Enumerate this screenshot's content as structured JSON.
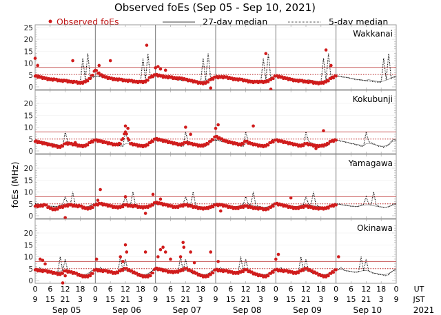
{
  "chart_data": {
    "type": "scatter",
    "title": "Observed foEs (Sep 05 - Sep 10, 2021)",
    "legend": {
      "observed": "Observed foEs",
      "median27": "27-day median",
      "median5": "5-day median",
      "placement": "top"
    },
    "ylabel": "foEs (MHz)",
    "colors": {
      "observed": "#d01c1c",
      "threshold": "#c85a5a",
      "median": "#000000",
      "grid": "#808080"
    },
    "x_axis": {
      "unit_hours": 144,
      "ut_label": "UT",
      "jst_label": "JST",
      "ut_ticks": [
        "0",
        "6",
        "12",
        "18",
        "0",
        "6",
        "12",
        "18",
        "0",
        "6",
        "12",
        "18",
        "0",
        "6",
        "12",
        "18",
        "0",
        "6",
        "12",
        "18",
        "0",
        "6",
        "12",
        "18",
        "0"
      ],
      "jst_ticks": [
        "9",
        "15",
        "21",
        "3",
        "9",
        "15",
        "21",
        "3",
        "9",
        "15",
        "21",
        "3",
        "9",
        "15",
        "21",
        "3",
        "9",
        "15",
        "21",
        "3",
        "9",
        "15",
        "21",
        "3",
        "9"
      ],
      "days": [
        "Sep 05",
        "Sep 06",
        "Sep 07",
        "Sep 08",
        "Sep 09",
        "Sep 10"
      ],
      "year": "2021"
    },
    "y_ticks_top": [
      "0",
      "5",
      "10",
      "15",
      "20",
      "25"
    ],
    "y_ticks": [
      "0",
      "5",
      "10",
      "15",
      "20"
    ],
    "ylim": [
      -1,
      26
    ],
    "observed_interval_hours": 2,
    "stations": [
      {
        "name": "Wakkanai",
        "threshold_solid": 8.2,
        "threshold_dotted": 5.2,
        "observed": [
          4.5,
          4,
          3.5,
          3,
          3,
          2.5,
          2.5,
          2,
          2,
          1.5,
          2,
          3.5,
          7,
          5,
          4,
          3.5,
          3,
          3,
          2.5,
          2.5,
          2,
          2,
          2,
          4,
          5,
          4.5,
          4,
          4,
          3.5,
          3.5,
          3,
          2.5,
          2,
          1.5,
          1.5,
          3,
          4,
          4,
          4,
          3.5,
          3,
          3,
          2.5,
          2,
          2,
          2,
          2,
          3,
          4.5,
          4,
          3.5,
          3,
          2.5,
          2.5,
          2,
          2,
          1.5,
          1.5,
          2,
          3.5,
          4.5
        ],
        "outliers": [
          [
            0,
            12
          ],
          [
            1,
            9
          ],
          [
            15,
            11
          ],
          [
            25.5,
            9
          ],
          [
            30,
            11
          ],
          [
            44.5,
            17.5
          ],
          [
            48,
            8
          ],
          [
            49,
            8.5
          ],
          [
            50,
            7.5
          ],
          [
            52,
            7
          ],
          [
            70,
            -0.5
          ],
          [
            92,
            14
          ],
          [
            94,
            -1
          ],
          [
            116,
            15.5
          ],
          [
            118,
            9
          ]
        ],
        "median5": [
          4.5,
          4.5,
          4.3,
          4,
          4,
          3.8,
          3.5,
          3.3,
          3,
          3,
          2.8,
          2.7,
          2.5,
          2.5,
          2.3,
          2.2,
          2,
          2,
          2,
          12,
          3,
          14,
          3.5,
          4
        ],
        "median27": [
          4.5,
          4.6,
          4.4,
          4.2,
          4,
          3.8,
          3.6,
          3.4,
          3.2,
          3,
          3,
          2.8,
          2.8,
          3,
          2.8,
          2.6,
          2.4,
          2.2,
          2.2,
          2.5,
          2.8,
          3.2,
          3.8,
          4.2
        ]
      },
      {
        "name": "Kokubunji",
        "threshold_solid": 8,
        "threshold_dotted": 5,
        "observed": [
          4,
          3.5,
          3,
          2.5,
          2,
          1.5,
          3,
          3,
          2.5,
          2,
          2,
          3.5,
          4.5,
          4,
          3.5,
          3,
          2.5,
          3,
          8,
          3,
          2.5,
          2,
          2,
          3.5,
          5,
          4.5,
          4,
          3.5,
          3,
          2.5,
          3.5,
          3,
          2.5,
          2,
          2.5,
          4,
          6,
          5,
          4,
          3.5,
          3,
          2.5,
          4,
          3,
          2.5,
          2,
          2,
          3.5,
          4.5,
          4,
          3.5,
          3,
          2.5,
          2,
          3,
          2.5,
          2,
          2,
          2.5,
          4,
          4.5
        ],
        "outliers": [
          [
            16,
            3.5
          ],
          [
            36,
            10.5
          ],
          [
            37,
            9.5
          ],
          [
            60,
            10
          ],
          [
            62,
            7
          ],
          [
            72,
            9.5
          ],
          [
            73,
            11
          ],
          [
            87,
            10.5
          ],
          [
            112,
            1
          ],
          [
            115,
            8.5
          ],
          [
            116,
            2.5
          ]
        ],
        "median5": [
          4.5,
          4.5,
          4,
          4,
          3.5,
          3.5,
          3,
          3,
          2.5,
          2.5,
          2,
          2,
          8,
          4,
          3.5,
          3,
          2.5,
          2,
          2,
          1.5,
          2,
          2.5,
          4,
          5
        ],
        "median27": [
          4.5,
          4.4,
          4.2,
          4,
          3.8,
          3.5,
          3.2,
          3,
          2.8,
          2.6,
          2.4,
          2.4,
          3,
          3.2,
          3,
          2.8,
          2.5,
          2.2,
          2,
          2,
          2.2,
          2.8,
          3.6,
          4.2
        ]
      },
      {
        "name": "Yamagawa",
        "threshold_solid": 8,
        "threshold_dotted": 5,
        "observed": [
          4,
          4,
          4.5,
          3,
          2.5,
          3.5,
          4,
          4.5,
          4,
          4,
          3,
          3,
          4.5,
          5,
          4.5,
          4,
          3.5,
          3.5,
          4.5,
          4,
          4,
          3.5,
          3.5,
          4,
          5.5,
          5,
          4.5,
          4,
          3.5,
          4,
          4.5,
          4,
          3.5,
          3,
          3,
          3.5,
          4.5,
          4.5,
          4,
          3.5,
          3,
          3.5,
          4,
          3.5,
          3,
          3,
          2.5,
          3.5,
          5,
          4.5,
          4,
          3.5,
          3,
          3.5,
          4,
          3.5,
          3,
          3,
          3,
          4,
          4.5
        ],
        "outliers": [
          [
            12,
            -0.8
          ],
          [
            25,
            6.5
          ],
          [
            26,
            11
          ],
          [
            36,
            8
          ],
          [
            44,
            1
          ],
          [
            47,
            9
          ],
          [
            50,
            7
          ],
          [
            74,
            2
          ],
          [
            102,
            7.5
          ]
        ],
        "median5": [
          5,
          5,
          4.8,
          4.5,
          4.5,
          4.2,
          4,
          4,
          3.8,
          4,
          4.5,
          4.8,
          8,
          5,
          4.5,
          10,
          4.5,
          4,
          3.8,
          3.5,
          3.5,
          3.8,
          4.2,
          5
        ],
        "median27": [
          4.8,
          4.8,
          4.6,
          4.5,
          4.3,
          4.2,
          4,
          4,
          3.9,
          4,
          4.2,
          4.4,
          4.6,
          4.6,
          4.4,
          4.2,
          4,
          3.8,
          3.6,
          3.5,
          3.6,
          3.9,
          4.3,
          4.6
        ]
      },
      {
        "name": "Okinawa",
        "threshold_solid": 8,
        "threshold_dotted": 5,
        "observed": [
          4.5,
          4,
          4,
          3.5,
          3,
          2.5,
          4,
          3.5,
          3,
          2,
          1.5,
          2,
          4.5,
          4,
          4,
          3.5,
          3,
          4,
          5,
          4,
          3,
          2,
          1.5,
          2,
          5,
          4.5,
          4,
          3.5,
          3.5,
          4,
          5,
          4,
          3,
          2,
          1.5,
          2.5,
          4.5,
          4,
          4,
          3.5,
          3,
          3.5,
          4.5,
          3.5,
          2.5,
          2,
          1.5,
          3,
          4.5,
          4,
          4,
          3.5,
          3,
          4,
          5,
          4,
          3,
          2,
          1.5,
          3,
          4.5
        ],
        "outliers": [
          [
            2,
            9
          ],
          [
            3,
            8.5
          ],
          [
            4,
            7
          ],
          [
            11,
            -1
          ],
          [
            12,
            2
          ],
          [
            24.5,
            9
          ],
          [
            34,
            10
          ],
          [
            35,
            8
          ],
          [
            36,
            15
          ],
          [
            36.5,
            12
          ],
          [
            44,
            12
          ],
          [
            49,
            10
          ],
          [
            50,
            13
          ],
          [
            51,
            14
          ],
          [
            52,
            12
          ],
          [
            54,
            9
          ],
          [
            58,
            10
          ],
          [
            59,
            16
          ],
          [
            59.3,
            14
          ],
          [
            62,
            12
          ],
          [
            63.5,
            7.5
          ],
          [
            70,
            12
          ],
          [
            73,
            8
          ],
          [
            96,
            9
          ],
          [
            97,
            11
          ],
          [
            121,
            10
          ]
        ],
        "median5": [
          4.5,
          4.5,
          5.5,
          4.5,
          4,
          4,
          3.8,
          3.5,
          3.5,
          3.5,
          10,
          4,
          9,
          4,
          3.5,
          3,
          3,
          2.5,
          2.5,
          2.2,
          2,
          2.5,
          3.5,
          4.5
        ],
        "median27": [
          4.5,
          4.6,
          4.6,
          4.4,
          4.2,
          4,
          3.8,
          3.6,
          3.6,
          3.8,
          4,
          4.2,
          4.2,
          4,
          3.6,
          3.2,
          3,
          2.8,
          2.6,
          2.5,
          2.6,
          3,
          3.6,
          4.2
        ]
      }
    ]
  }
}
